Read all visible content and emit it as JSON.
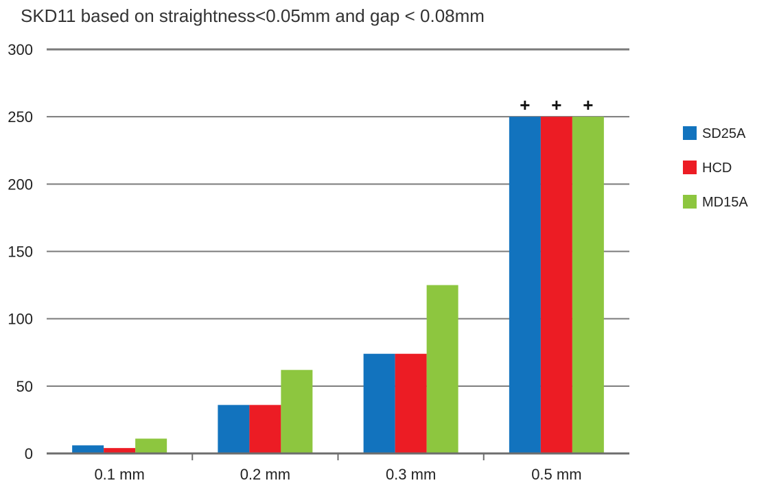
{
  "chart_data": {
    "type": "bar",
    "title": "SKD11 based on straightness<0.05mm and gap < 0.08mm",
    "xlabel": "",
    "ylabel": "",
    "categories": [
      "0.1 mm",
      "0.2 mm",
      "0.3 mm",
      "0.5 mm"
    ],
    "series": [
      {
        "name": "SD25A",
        "color": "#1273BE",
        "values": [
          6,
          36,
          74,
          250
        ]
      },
      {
        "name": "HCD",
        "color": "#EC1C24",
        "values": [
          4,
          36,
          74,
          250
        ]
      },
      {
        "name": "MD15A",
        "color": "#8DC63F",
        "values": [
          11,
          62,
          125,
          250
        ]
      }
    ],
    "ylim": [
      0,
      300
    ],
    "yticks": [
      "0",
      "50",
      "100",
      "150",
      "200",
      "250",
      "300"
    ],
    "grid": true,
    "legend": "right",
    "annotations": [
      {
        "category": "0.5 mm",
        "series": "SD25A",
        "text": "+"
      },
      {
        "category": "0.5 mm",
        "series": "HCD",
        "text": "+"
      },
      {
        "category": "0.5 mm",
        "series": "MD15A",
        "text": "+"
      }
    ],
    "colors": {
      "gridline": "#7a7a7a",
      "axis": "#6d6d6d"
    }
  }
}
